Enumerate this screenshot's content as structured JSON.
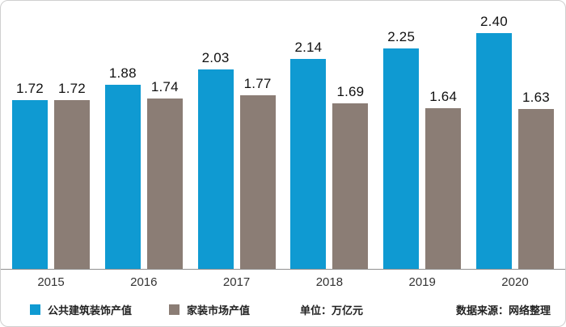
{
  "chart_data": {
    "type": "bar",
    "title": "",
    "categories": [
      "2015",
      "2016",
      "2017",
      "2018",
      "2019",
      "2020"
    ],
    "series": [
      {
        "name": "公共建筑装饰产值",
        "color": "#0f9ad2",
        "values": [
          1.72,
          1.88,
          2.03,
          2.14,
          2.25,
          2.4
        ]
      },
      {
        "name": "家装市场产值",
        "color": "#8b7d75",
        "values": [
          1.72,
          1.74,
          1.77,
          1.69,
          1.64,
          1.63
        ]
      }
    ],
    "ylim": [
      0,
      2.6
    ],
    "xlabel": "",
    "ylabel": "",
    "grid": false,
    "legend_position": "bottom",
    "value_label_decimals": 2,
    "unit_label": "单位：万亿元",
    "source_label": "数据来源：网络整理"
  }
}
